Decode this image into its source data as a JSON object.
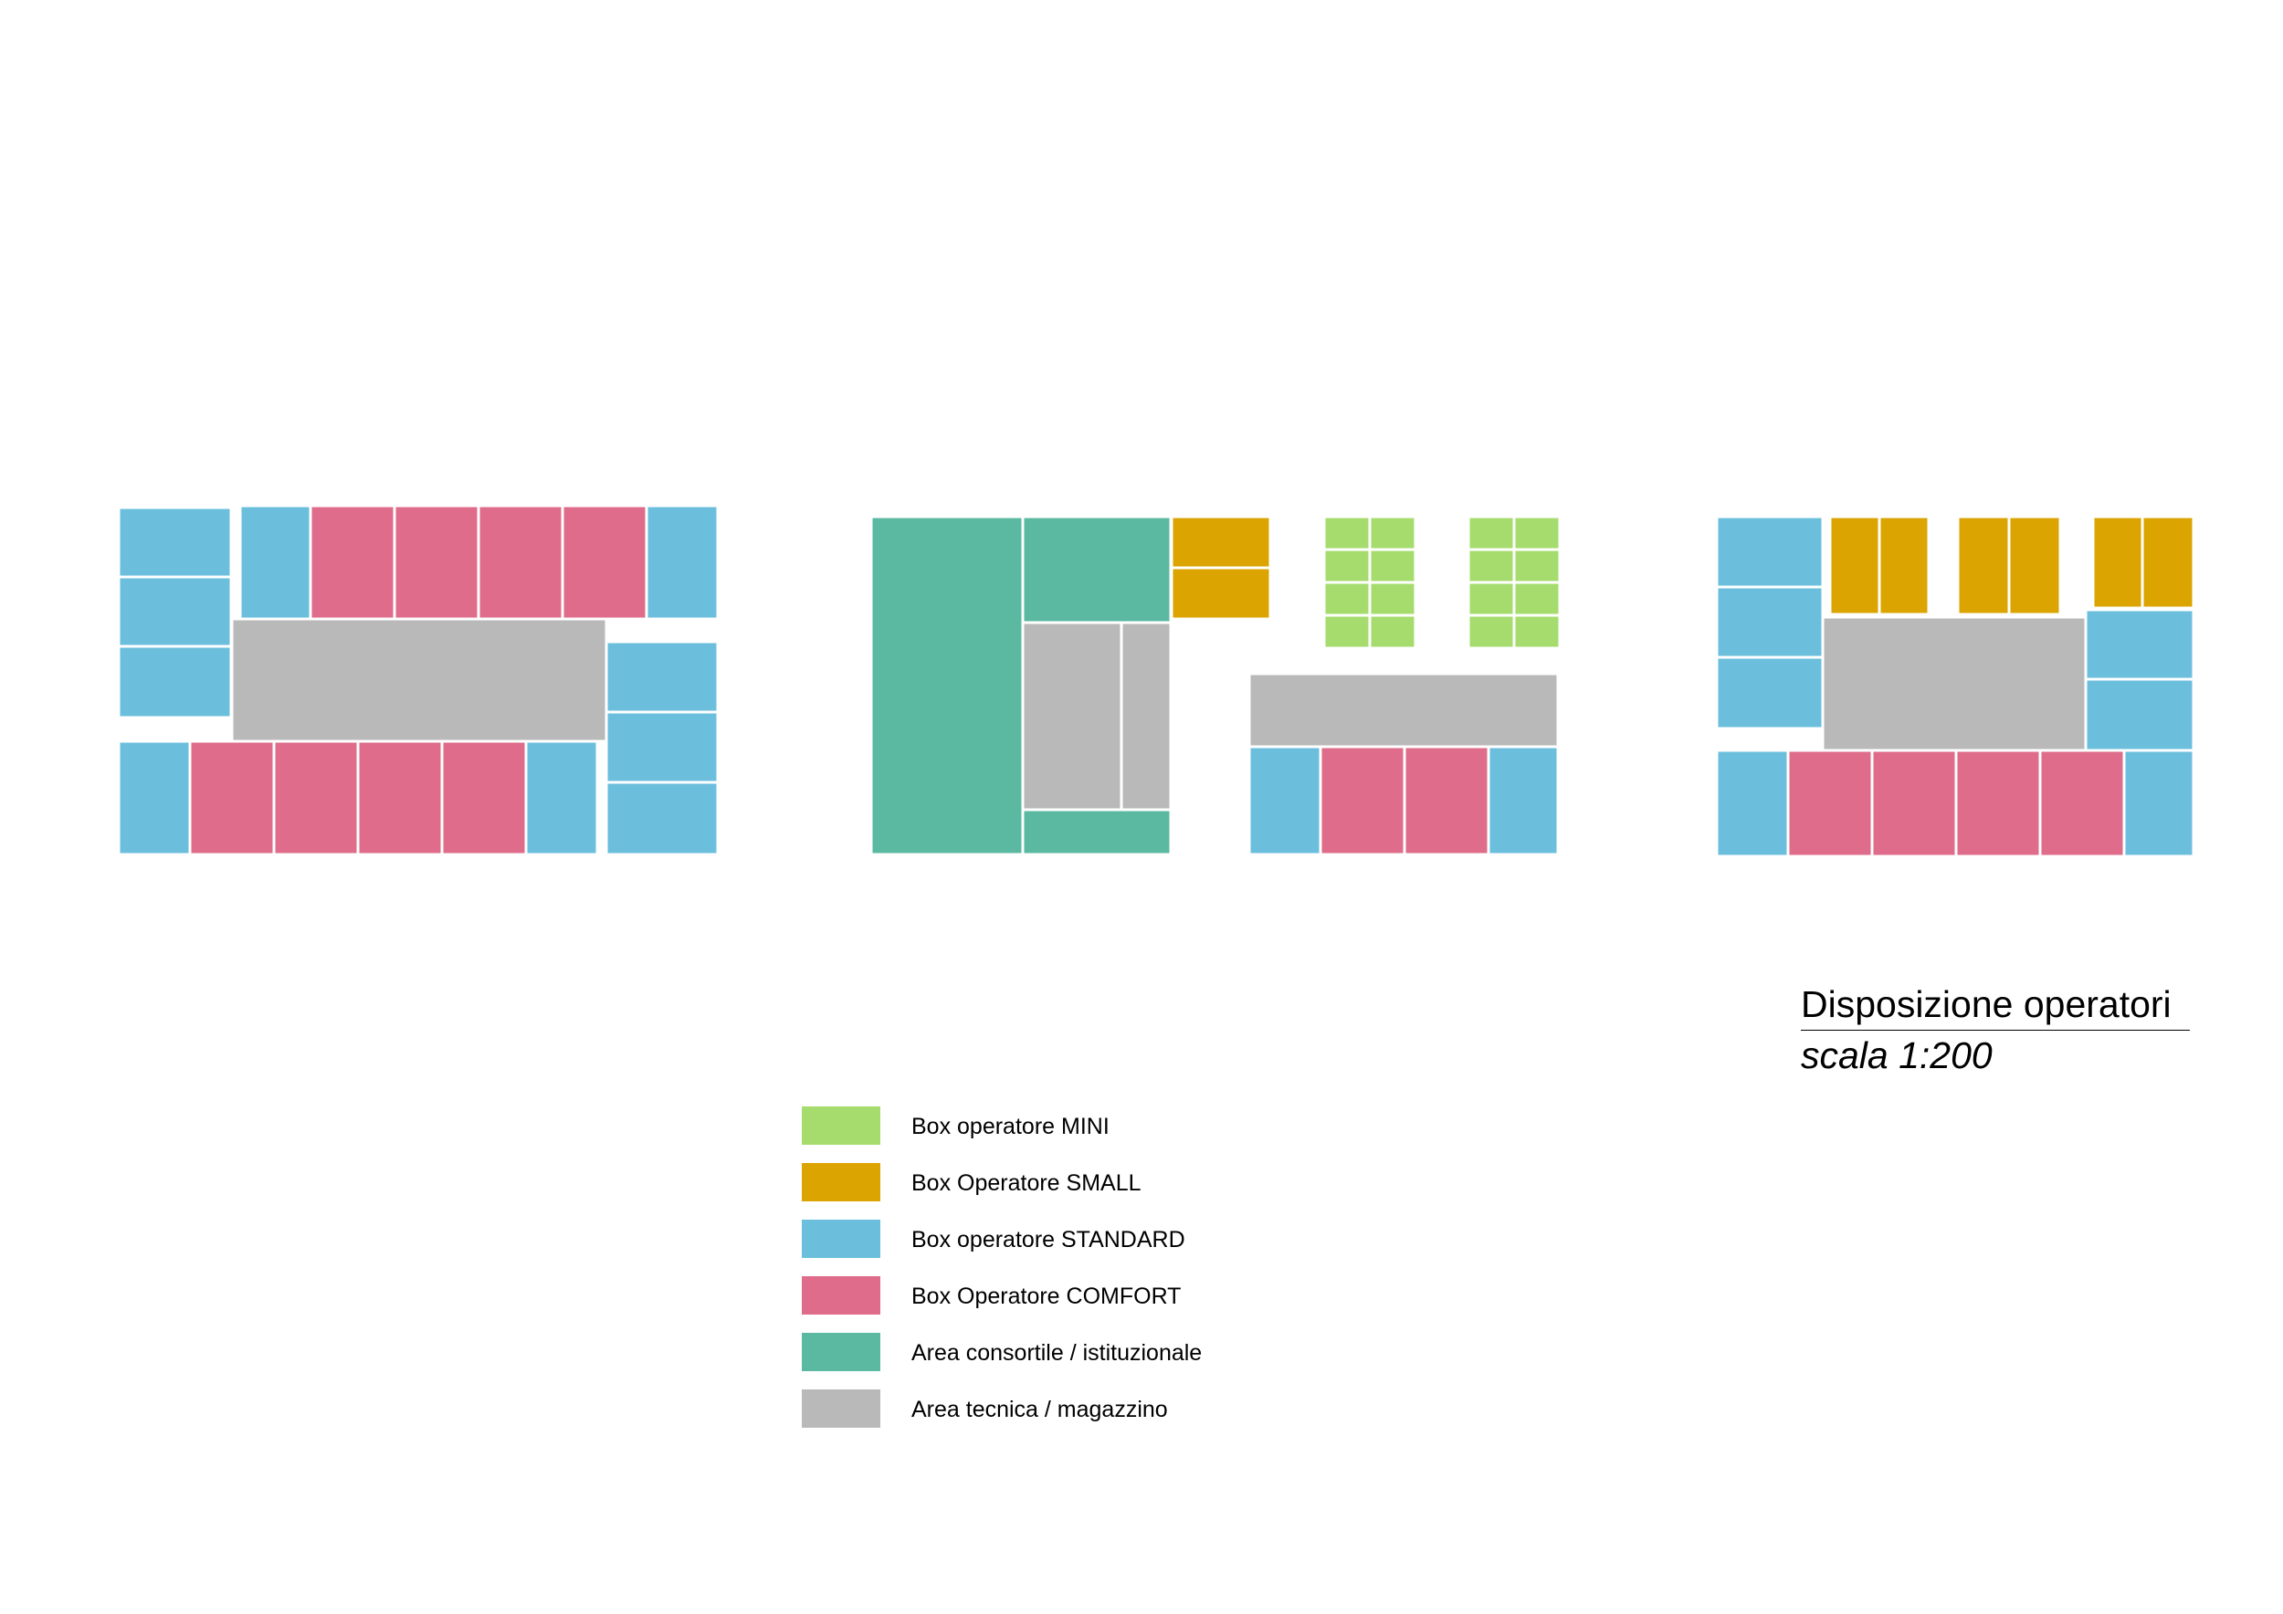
{
  "colors": {
    "mini": "#a6dc6e",
    "small": "#dba400",
    "standard": "#6bbfdd",
    "comfort": "#de6c8a",
    "consortile": "#5bb9a2",
    "tecnica": "#b9b9b9"
  },
  "title": {
    "main": "Disposizione operatori",
    "scale": "scala 1:200"
  },
  "legend": [
    {
      "key": "mini",
      "label": "Box operatore MINI"
    },
    {
      "key": "small",
      "label": "Box Operatore SMALL"
    },
    {
      "key": "standard",
      "label": "Box operatore STANDARD"
    },
    {
      "key": "comfort",
      "label": "Box Operatore COMFORT"
    },
    {
      "key": "consortile",
      "label": "Area consortile / istituzionale"
    },
    {
      "key": "tecnica",
      "label": "Area tecnica / magazzino"
    }
  ]
}
